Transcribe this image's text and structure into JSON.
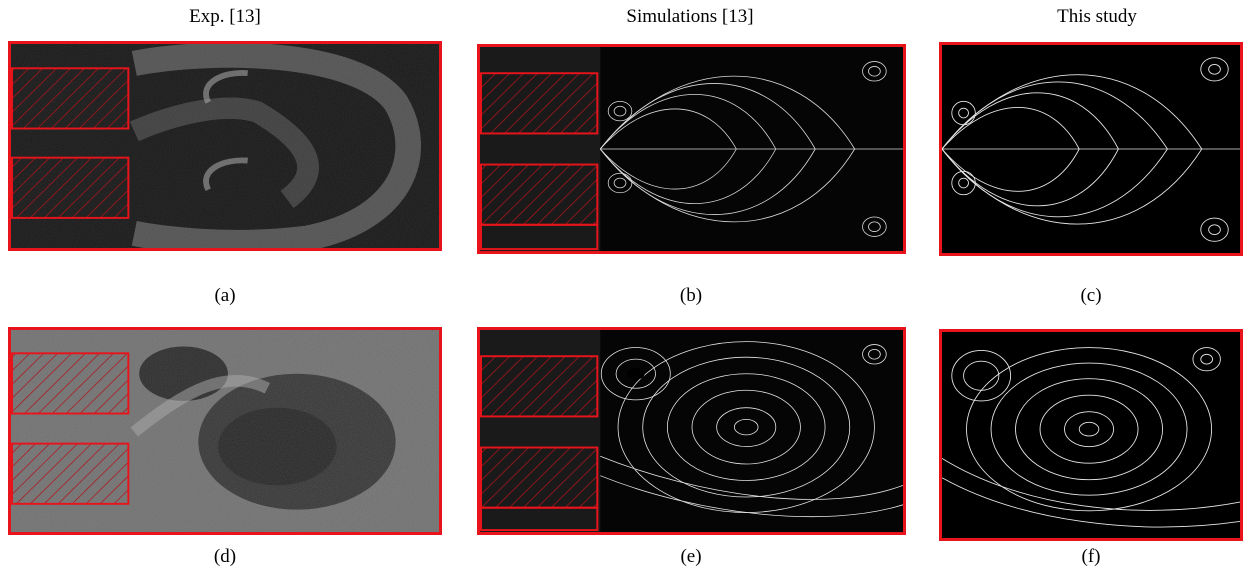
{
  "figure": {
    "column_titles": [
      "Exp. [13]",
      "Simulations [13]",
      "This study"
    ],
    "captions": [
      "(a)",
      "(b)",
      "(c)",
      "(d)",
      "(e)",
      "(f)"
    ]
  },
  "colors": {
    "frame": "#e8141b",
    "background": "#111111",
    "streamline": "#ffffff"
  }
}
